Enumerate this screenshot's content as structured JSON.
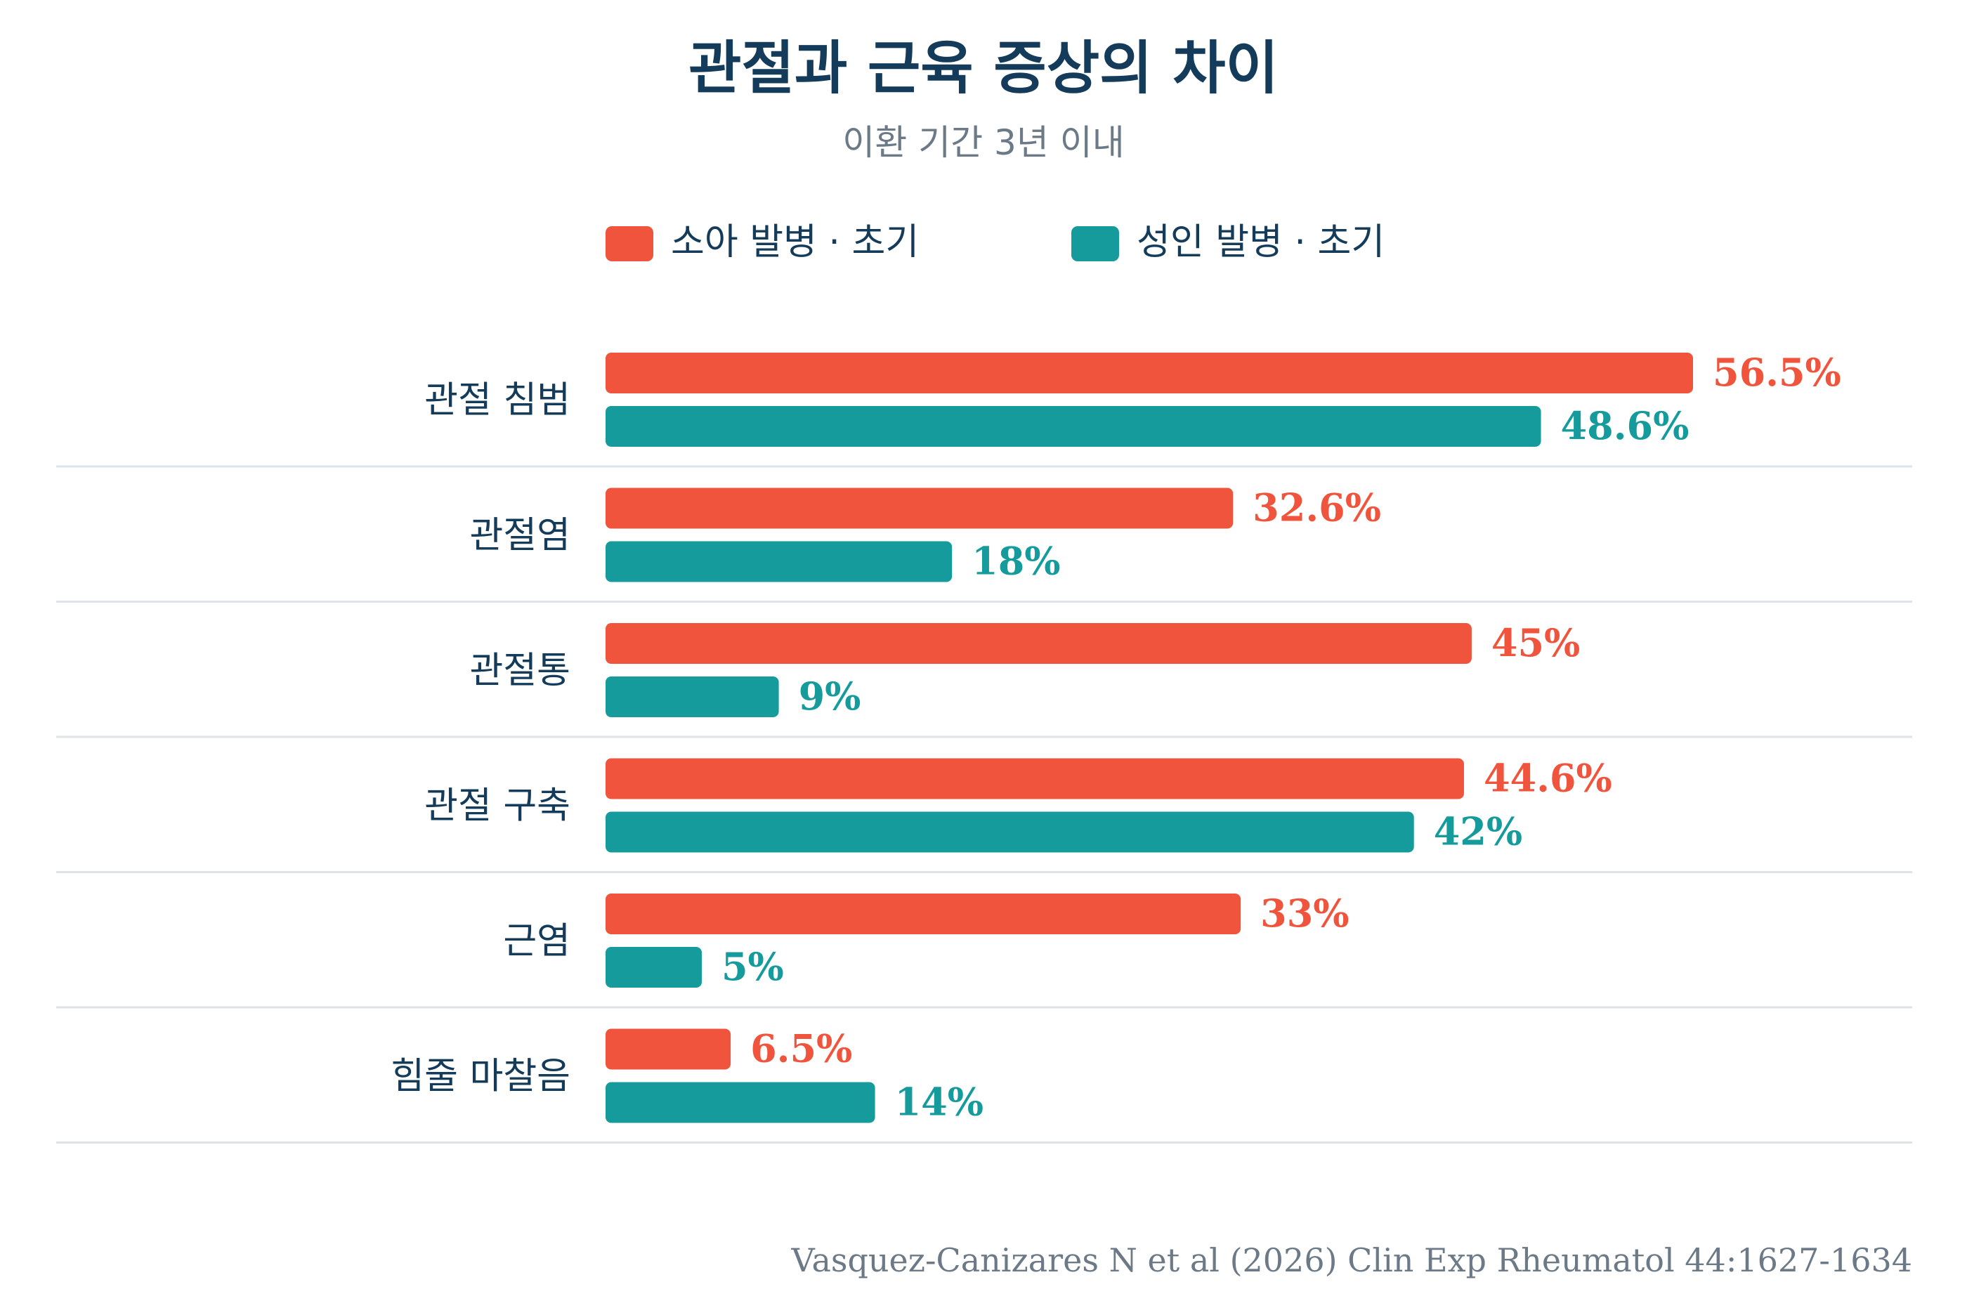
{
  "chart_data": {
    "type": "bar",
    "orientation": "horizontal",
    "title": "관절과 근육 증상의 차이",
    "subtitle": "이환 기간 3년 이내",
    "categories": [
      "관절 침범",
      "관절염",
      "관절통",
      "관절 구축",
      "근염",
      "힘줄 마찰음"
    ],
    "series": [
      {
        "name": "소아 발병 · 초기",
        "color": "#f0543c",
        "values": [
          56.5,
          32.6,
          45,
          44.6,
          33,
          6.5
        ],
        "labels": [
          "56.5%",
          "32.6%",
          "45%",
          "44.6%",
          "33%",
          "6.5%"
        ]
      },
      {
        "name": "성인 발병 · 초기",
        "color": "#169b9d",
        "values": [
          48.6,
          18,
          9,
          42,
          5,
          14
        ],
        "labels": [
          "48.6%",
          "18%",
          "9%",
          "42%",
          "5%",
          "14%"
        ]
      }
    ],
    "xlim": [
      0,
      56.5
    ],
    "legend_position": "top-center",
    "grid": false,
    "source": "Vasquez-Canizares N et al (2026) Clin Exp Rheumatol 44:1627-1634"
  }
}
